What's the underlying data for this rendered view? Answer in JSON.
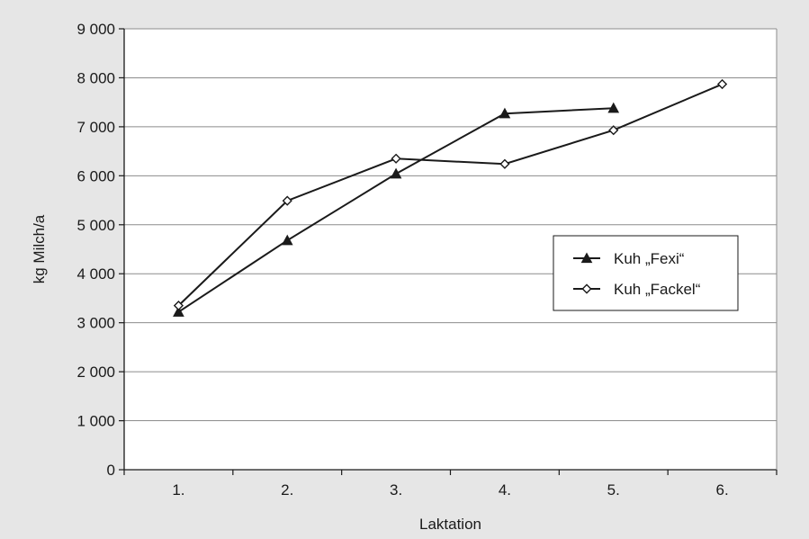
{
  "chart_data": {
    "type": "line",
    "categories": [
      "1.",
      "2.",
      "3.",
      "4.",
      "5.",
      "6."
    ],
    "series": [
      {
        "name": "Kuh „Fexi“",
        "marker": "triangle",
        "values": [
          3220,
          4680,
          6040,
          7270,
          7380,
          null
        ]
      },
      {
        "name": "Kuh „Fackel“",
        "marker": "diamond",
        "values": [
          3350,
          5490,
          6350,
          6240,
          6930,
          7870
        ]
      }
    ],
    "xlabel": "Laktation",
    "ylabel": "kg Milch/a",
    "ylim": [
      0,
      9000
    ],
    "yticks": [
      0,
      1000,
      2000,
      3000,
      4000,
      5000,
      6000,
      7000,
      8000,
      9000
    ],
    "ytick_labels": [
      "0",
      "1 000",
      "2 000",
      "3 000",
      "4 000",
      "5 000",
      "6 000",
      "7 000",
      "8 000",
      "9 000"
    ],
    "grid": "horizontal",
    "legend_position": "right",
    "colors": {
      "line": "#1a1a1a",
      "background": "#e6e6e6",
      "plot_area": "#ffffff",
      "grid": "#8c8c8c"
    }
  }
}
